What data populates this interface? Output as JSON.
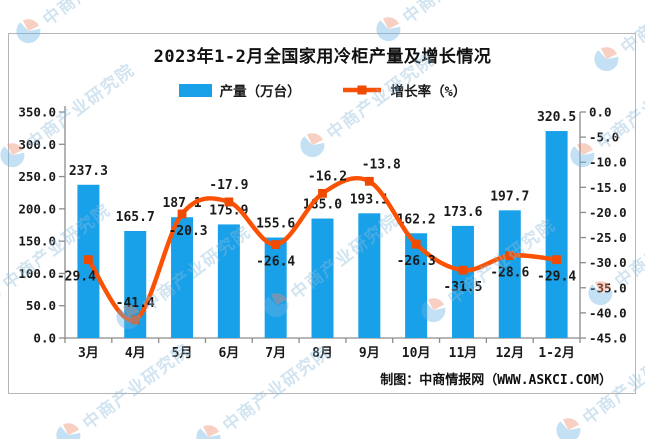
{
  "title": "2023年1-2月全国家用冷柜产量及增长情况",
  "legend": {
    "production_label": "产量（万台）",
    "growth_label": "增长率（%）"
  },
  "footer_credit": "制图：中商情报网（WWW.ASKCI.COM）",
  "watermark_text": "中商产业研究院",
  "colors": {
    "bar": "#18a0e8",
    "line": "#fb5102",
    "marker": "#ef4a00",
    "axis": "#8c8c8c",
    "text": "#1a1a1a",
    "border": "#b5b5b5",
    "watermark_blue": "#6db4e4",
    "watermark_red": "#f08a6a"
  },
  "chart_data": {
    "type": "bar+line",
    "title": "2023年1-2月全国家用冷柜产量及增长情况",
    "categories": [
      "3月",
      "4月",
      "5月",
      "6月",
      "7月",
      "8月",
      "9月",
      "10月",
      "11月",
      "12月",
      "1-2月"
    ],
    "series": [
      {
        "name": "产量（万台）",
        "type": "bar",
        "axis": "left",
        "values": [
          237.3,
          165.7,
          187.1,
          175.9,
          155.6,
          185.0,
          193.1,
          162.2,
          173.6,
          197.7,
          320.5
        ]
      },
      {
        "name": "增长率（%）",
        "type": "line",
        "axis": "right",
        "values": [
          -29.4,
          -41.4,
          -20.3,
          -17.9,
          -26.4,
          -16.2,
          -13.8,
          -26.3,
          -31.5,
          -28.6,
          -29.4
        ],
        "label_side": [
          "below",
          "above",
          "below",
          "above",
          "below",
          "above",
          "above",
          "below",
          "below",
          "below",
          "below"
        ],
        "label_dx": [
          -12,
          0,
          6,
          0,
          0,
          5,
          12,
          0,
          0,
          0,
          0
        ]
      }
    ],
    "left_axis": {
      "min": 0,
      "max": 350,
      "step": 50,
      "ticks": [
        "0.0",
        "50.0",
        "100.0",
        "150.0",
        "200.0",
        "250.0",
        "300.0",
        "350.0"
      ]
    },
    "right_axis": {
      "min": -45,
      "max": 0,
      "step": 5,
      "ticks": [
        "0.0",
        "-5.0",
        "-10.0",
        "-15.0",
        "-20.0",
        "-25.0",
        "-30.0",
        "-35.0",
        "-40.0",
        "-45.0"
      ]
    },
    "grid": false,
    "legend_position": "top",
    "smooth_line": true
  }
}
